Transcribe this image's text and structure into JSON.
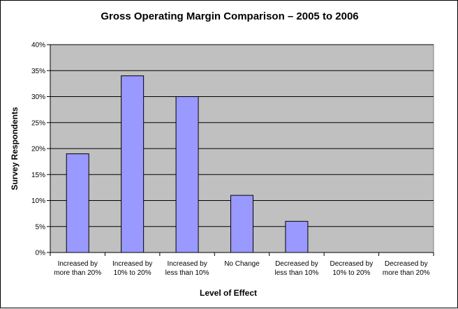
{
  "chart_data": {
    "type": "bar",
    "title": "Gross Operating Margin Comparison – 2005 to 2006",
    "xlabel": "Level of Effect",
    "ylabel": "Survey Respondents",
    "categories": [
      [
        "Increased by",
        "more than 20%"
      ],
      [
        "Increased by",
        "10% to 20%"
      ],
      [
        "Increased by",
        "less than 10%"
      ],
      [
        "No Change"
      ],
      [
        "Decreased by",
        "less than 10%"
      ],
      [
        "Decreased by",
        "10% to 20%"
      ],
      [
        "Decreased by",
        "more than 20%"
      ]
    ],
    "values": [
      19,
      34,
      30,
      11,
      6,
      0,
      0
    ],
    "ylim": [
      0,
      40
    ],
    "yticks": [
      "0%",
      "5%",
      "10%",
      "15%",
      "20%",
      "25%",
      "30%",
      "35%",
      "40%"
    ],
    "ytick_values": [
      0,
      5,
      10,
      15,
      20,
      25,
      30,
      35,
      40
    ],
    "grid": true,
    "legend": "none",
    "colors": {
      "bar_fill": "#9999ff",
      "bar_stroke": "#000000",
      "plot_bg": "#c0c0c0",
      "grid": "#000000"
    }
  }
}
